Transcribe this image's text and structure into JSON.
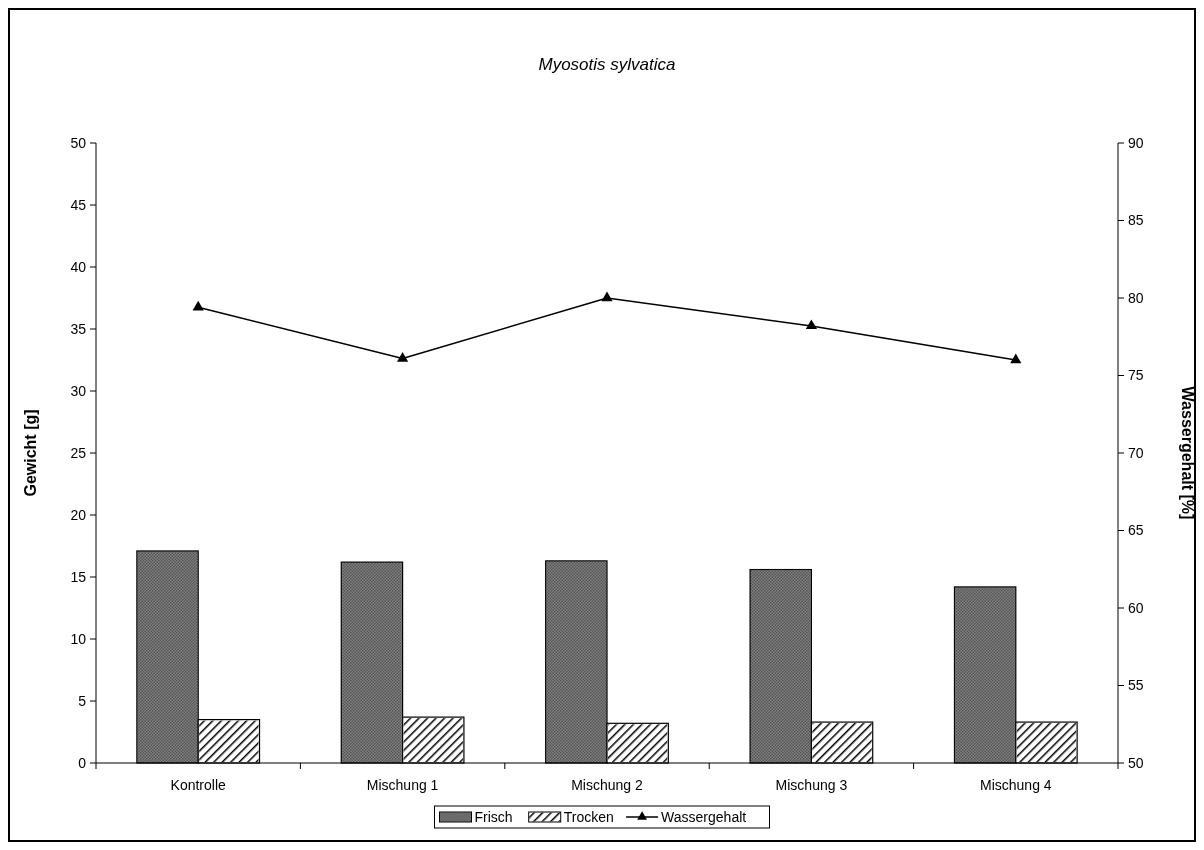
{
  "chart_data": {
    "type": "bar",
    "title": "Myosotis sylvatica",
    "ylabel": "Gewicht [g]",
    "y2label": "Wassergehalt [%]",
    "categories": [
      "Kontrolle",
      "Mischung 1",
      "Mischung 2",
      "Mischung 3",
      "Mischung 4"
    ],
    "series": [
      {
        "name": "Frisch",
        "color": "#808080",
        "values": [
          17.1,
          16.2,
          16.3,
          15.6,
          14.2
        ]
      },
      {
        "name": "Trocken",
        "color": "#ffffff",
        "values": [
          3.5,
          3.7,
          3.2,
          3.3,
          3.3
        ]
      },
      {
        "name": "Wassergehalt",
        "type": "line",
        "axis": "y2",
        "color": "#000000",
        "marker": "triangle",
        "values": [
          79.4,
          76.1,
          80,
          78.2,
          76
        ]
      }
    ],
    "ylim": [
      0,
      50
    ],
    "yticks": [
      0,
      5,
      10,
      15,
      20,
      25,
      30,
      35,
      40,
      45,
      50
    ],
    "y2lim": [
      50,
      90
    ],
    "y2ticks": [
      50,
      55,
      60,
      65,
      70,
      75,
      80,
      85,
      90
    ],
    "grid": false,
    "legend": "bottom"
  }
}
